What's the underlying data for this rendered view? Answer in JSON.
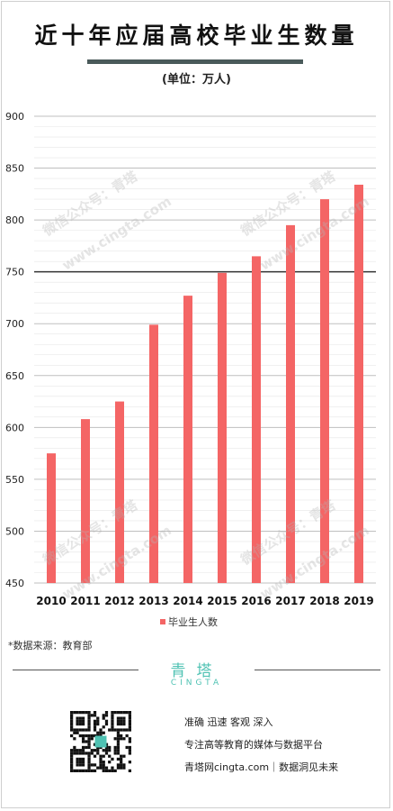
{
  "title": "近十年应届高校毕业生数量",
  "unit": "(单位：万人)",
  "chart_data": {
    "type": "bar",
    "categories": [
      "2010",
      "2011",
      "2012",
      "2013",
      "2014",
      "2015",
      "2016",
      "2017",
      "2018",
      "2019"
    ],
    "series": [
      {
        "name": "毕业生人数",
        "values": [
          575,
          608,
          625,
          699,
          727,
          749,
          765,
          795,
          820,
          834
        ]
      }
    ],
    "ylim": [
      450,
      900
    ],
    "yticks": [
      450,
      500,
      550,
      600,
      650,
      700,
      750,
      800,
      850,
      900
    ],
    "bar_color": "#f46565",
    "highlight_gridline": 750,
    "grid": true,
    "legend": "bottom"
  },
  "legend_label": "毕业生人数",
  "source": "*数据来源：教育部",
  "brand": {
    "name": "青塔",
    "en": "CINGTA",
    "color": "#4fc2b3"
  },
  "footer": {
    "line1": "准确  迅速  客观  深入",
    "line2": "专注高等教育的媒体与数据平台",
    "line3": "青塔网cingta.com｜数据洞见未来"
  },
  "watermark": {
    "cn": "微信公众号：青塔",
    "en": "www.cingta.com"
  }
}
